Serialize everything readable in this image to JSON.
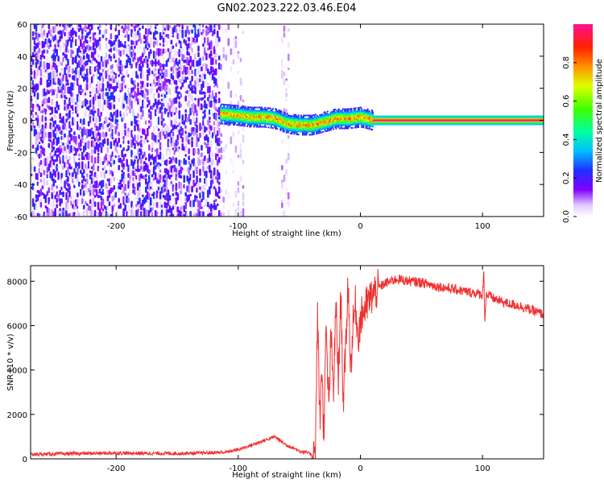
{
  "title": "GN02.2023.222.03.46.E04",
  "chart_data": [
    {
      "type": "heatmap",
      "xlabel": "Height of straight line (km)",
      "ylabel": "Frequency (Hz)",
      "xlim": [
        -270,
        150
      ],
      "ylim": [
        -60,
        60
      ],
      "xticks": [
        -200,
        -100,
        0,
        100
      ],
      "yticks": [
        -60,
        -40,
        -20,
        0,
        20,
        40,
        60
      ],
      "colorbar": {
        "label": "Normalized spectral amplitude",
        "range": [
          0,
          1
        ],
        "ticks": [
          0.0,
          0.2,
          0.4,
          0.6,
          0.8
        ],
        "tick_labels": [
          "0.0",
          "0.2",
          "0.4",
          "0.6",
          "0.8"
        ]
      },
      "regions": [
        {
          "x_range": [
            -270,
            -115
          ],
          "description_level": "noise",
          "amplitude_range": [
            0.0,
            0.25
          ]
        },
        {
          "x_range": [
            -115,
            -95
          ],
          "description_level": "faint noise",
          "amplitude_range": [
            0.0,
            0.1
          ]
        },
        {
          "x_range": [
            -65,
            -58
          ],
          "description_level": "faint noise column",
          "amplitude_range": [
            0.0,
            0.1
          ]
        },
        {
          "x_range": [
            -115,
            10
          ],
          "description_level": "signal band near 0 Hz",
          "amplitude_range": [
            0.2,
            0.9
          ]
        },
        {
          "x_range": [
            10,
            150
          ],
          "description_level": "narrow line at 0 Hz",
          "amplitude_range": [
            0.9,
            1.0
          ]
        }
      ],
      "signal_center_hz": [
        {
          "x": -115,
          "y": 4
        },
        {
          "x": -100,
          "y": 3
        },
        {
          "x": -90,
          "y": 2
        },
        {
          "x": -80,
          "y": 2
        },
        {
          "x": -70,
          "y": 1
        },
        {
          "x": -60,
          "y": -2
        },
        {
          "x": -50,
          "y": -3
        },
        {
          "x": -40,
          "y": -3
        },
        {
          "x": -30,
          "y": -1
        },
        {
          "x": -20,
          "y": 1
        },
        {
          "x": -10,
          "y": 1
        },
        {
          "x": 0,
          "y": 2
        },
        {
          "x": 10,
          "y": 0
        },
        {
          "x": 150,
          "y": 0
        }
      ]
    },
    {
      "type": "line",
      "xlabel": "Height of straight line (km)",
      "ylabel": "SNR (10 * v/v)",
      "xlim": [
        -270,
        150
      ],
      "ylim": [
        0,
        8700
      ],
      "xticks": [
        -200,
        -100,
        0,
        100
      ],
      "yticks": [
        0,
        2000,
        4000,
        6000,
        8000
      ],
      "color": "#f03030",
      "series": [
        {
          "x": [
            -270,
            -250,
            -230,
            -200,
            -180,
            -150,
            -130,
            -110,
            -100,
            -90,
            -80,
            -75,
            -70,
            -65,
            -60,
            -55,
            -50,
            -45,
            -40,
            -37,
            -36,
            -35,
            -34,
            -33,
            -32,
            -30,
            -28,
            -26,
            -24,
            -22,
            -20,
            -18,
            -16,
            -14,
            -12,
            -10,
            -8,
            -6,
            -4,
            -2,
            0,
            2,
            4,
            6,
            8,
            10,
            15,
            20,
            25,
            30,
            40,
            50,
            60,
            70,
            80,
            90,
            100,
            101,
            102,
            103,
            110,
            120,
            130,
            140,
            150
          ],
          "y": [
            200,
            220,
            240,
            260,
            250,
            240,
            260,
            300,
            420,
            600,
            800,
            900,
            1000,
            800,
            600,
            500,
            350,
            300,
            200,
            250,
            3000,
            6700,
            3500,
            1500,
            4500,
            1200,
            5800,
            2200,
            5500,
            3000,
            7000,
            3500,
            7500,
            2500,
            5000,
            8100,
            4000,
            6000,
            7000,
            5500,
            6200,
            6600,
            6800,
            7000,
            7200,
            7400,
            7700,
            7900,
            8000,
            8100,
            8000,
            7950,
            7800,
            7700,
            7600,
            7500,
            7400,
            8600,
            6200,
            7400,
            7200,
            7000,
            6900,
            6700,
            6500
          ]
        }
      ]
    }
  ]
}
